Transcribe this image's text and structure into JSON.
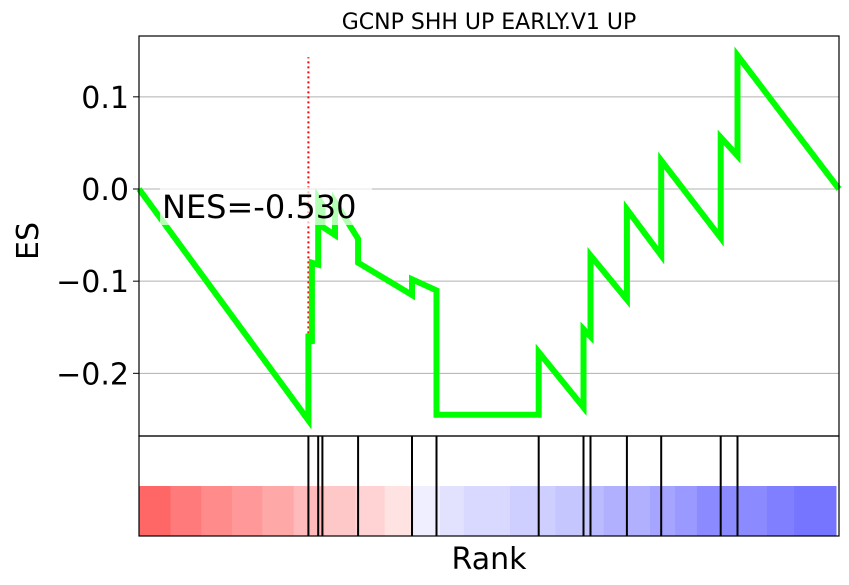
{
  "chart_data": [
    {
      "type": "line",
      "title": "GCNP SHH UP EARLY.V1 UP",
      "ylabel": "ES",
      "xlabel": "",
      "ylim": [
        -0.268,
        0.166
      ],
      "yticks": [
        0.1,
        0.0,
        -0.1,
        -0.2
      ],
      "ytick_labels": [
        "0.1",
        "0.0",
        "−0.1",
        "−0.2"
      ],
      "grid": "horizontal",
      "annotation": "NES=-0.530",
      "xrange": [
        0,
        1000
      ],
      "series": [
        {
          "color": "#00ff00",
          "x": [
            0,
            242,
            242,
            247,
            247,
            256,
            256,
            262,
            262,
            280,
            280,
            313,
            313,
            390,
            390,
            425,
            425,
            571,
            571,
            635,
            635,
            645,
            645,
            697,
            697,
            746,
            746,
            831,
            831,
            855,
            855,
            1000
          ],
          "y": [
            0,
            -0.251,
            -0.157,
            -0.168,
            -0.08,
            -0.082,
            -0.01,
            -0.017,
            -0.041,
            -0.05,
            -0.014,
            -0.054,
            -0.08,
            -0.115,
            -0.098,
            -0.11,
            -0.245,
            -0.245,
            -0.177,
            -0.237,
            -0.152,
            -0.16,
            -0.072,
            -0.12,
            -0.022,
            -0.072,
            0.031,
            -0.053,
            0.056,
            0.036,
            0.145,
            0
          ]
        }
      ],
      "marker_line": {
        "x": 242,
        "color": "#ff0000",
        "style": "dotted"
      }
    },
    {
      "type": "heatmap",
      "xlabel": "Rank",
      "hits_x": [
        242,
        256,
        262,
        313,
        390,
        425,
        571,
        635,
        645,
        697,
        746,
        831,
        855
      ],
      "color_bands": [
        "#ff6666",
        "#ff7a7a",
        "#ff8b8b",
        "#ff9999",
        "#ffa8a8",
        "#ffbbbb",
        "#ffc8c8",
        "#ffd3d3",
        "#ffe2e2",
        "#efefff",
        "#e2e2ff",
        "#d9d9ff",
        "#cfcfff",
        "#c6c6ff",
        "#bbbbff",
        "#b0b0ff",
        "#a5a5ff",
        "#9999ff",
        "#8b8bff",
        "#7f7fff",
        "#7575ff"
      ],
      "band_edges": [
        0,
        45,
        89,
        133,
        176,
        221,
        265,
        309,
        351,
        393,
        430,
        464,
        530,
        595,
        643,
        664,
        730,
        766,
        797,
        897,
        936,
        1000
      ]
    }
  ]
}
